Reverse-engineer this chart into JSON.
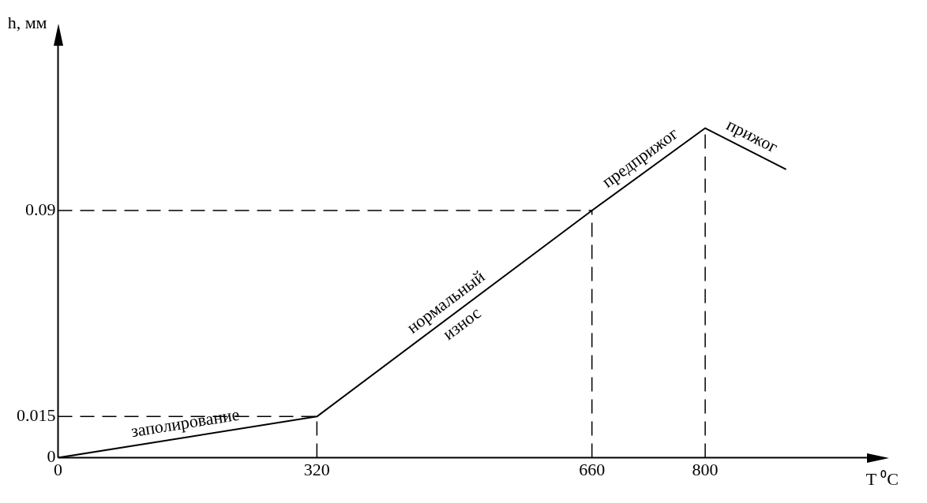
{
  "chart_data": {
    "type": "line",
    "xlabel": "T ⁰C",
    "ylabel": "h, мм",
    "x": [
      0,
      320,
      660,
      800,
      900
    ],
    "series": [
      {
        "color": "#000000",
        "values": [
          0,
          0.015,
          0.09,
          0.12,
          0.105
        ]
      }
    ],
    "xlim": [
      0,
      1000
    ],
    "xticks": [
      0,
      320,
      660,
      800
    ],
    "ylim": [
      0,
      0.15
    ],
    "yticks": [
      0,
      0.015,
      0.09
    ],
    "grid": false,
    "legend": false,
    "marker": "none",
    "line_style": "solid",
    "ref_lines": [
      {
        "axis": "y",
        "value": 0.015,
        "line_style": "dashed",
        "color": "#000000"
      },
      {
        "axis": "y",
        "value": 0.09,
        "line_style": "dashed",
        "color": "#000000"
      },
      {
        "axis": "x",
        "value": 320,
        "line_style": "dashed",
        "color": "#000000"
      },
      {
        "axis": "x",
        "value": 660,
        "line_style": "dashed",
        "color": "#000000"
      },
      {
        "axis": "x",
        "value": 800,
        "line_style": "dashed",
        "color": "#000000"
      }
    ],
    "annotations": [
      {
        "text": "заполирование",
        "x": 160,
        "y": 0.0075
      },
      {
        "text": "нормальный\nизнос",
        "x": 490,
        "y": 0.0525
      },
      {
        "text": "предприжог",
        "x": 730,
        "y": 0.105
      },
      {
        "text": "прижог",
        "x": 850,
        "y": 0.1125
      }
    ]
  }
}
